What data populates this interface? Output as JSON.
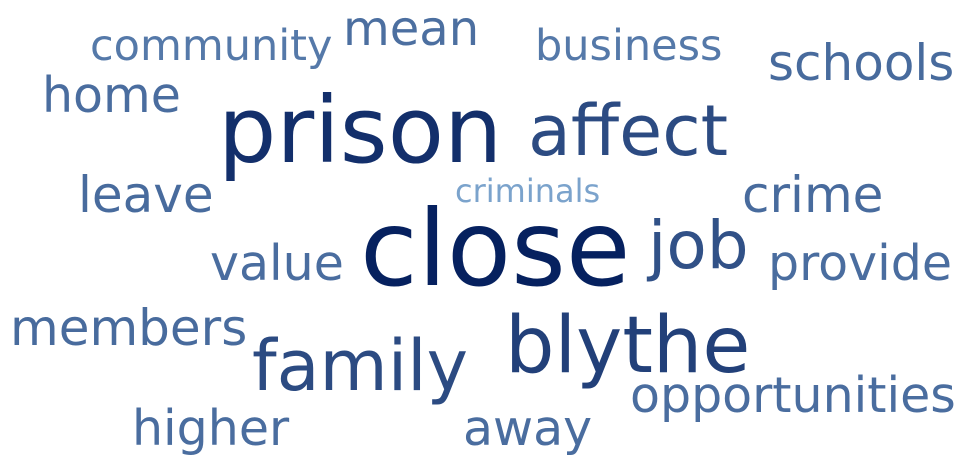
{
  "chart_data": {
    "type": "wordcloud",
    "words": [
      "close",
      "prison",
      "blythe",
      "affect",
      "family",
      "job",
      "crime",
      "schools",
      "opportunities",
      "provide",
      "leave",
      "home",
      "members",
      "value",
      "higher",
      "away",
      "mean",
      "business",
      "community",
      "criminals"
    ],
    "values": [
      105,
      92,
      78,
      70,
      70,
      66,
      50,
      50,
      49,
      49,
      50,
      49,
      50,
      49,
      49,
      49,
      48,
      43,
      43,
      32
    ]
  }
}
